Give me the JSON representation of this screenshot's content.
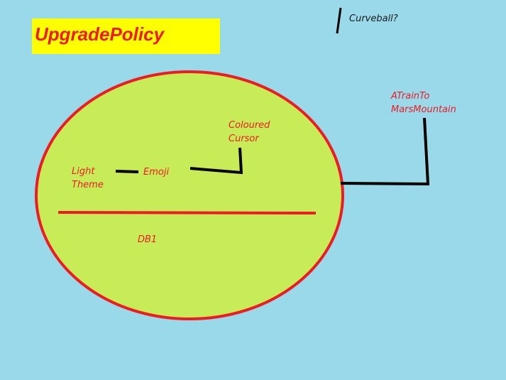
{
  "diagram": {
    "title": "UpgradePolicy",
    "labels": {
      "light_theme_line1": "Light",
      "light_theme_line2": "Theme",
      "emoji": "Emoji",
      "coloured_cursor_line1": "Coloured",
      "coloured_cursor_line2": "Cursor",
      "db1": "DB1",
      "train_line1": "ATrainTo",
      "train_line2": "MarsMountain",
      "curveball": "Curveball?"
    },
    "colors": {
      "background": "#99d9ea",
      "title_box": "#ffff00",
      "title_text": "#ed1c24",
      "ellipse_fill": "#c8eb58",
      "ellipse_stroke": "#ed1c24",
      "label_text": "#ed1c24",
      "connector": "#000000"
    }
  }
}
